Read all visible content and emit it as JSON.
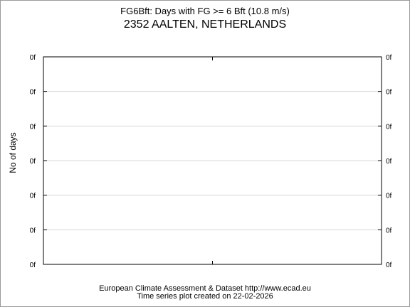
{
  "page": {
    "title": "FG6Bft: Days with FG >= 6 Bft (10.8 m/s)",
    "subtitle": "2352 AALTEN, NETHERLANDS",
    "footer_line1": "European Climate Assessment & Dataset  http://www.ecad.eu",
    "footer_line2": "Time series plot created on 22-02-2026"
  },
  "chart_data": {
    "type": "line",
    "title": "FG6Bft: Days with FG >= 6 Bft (10.8 m/s)",
    "subtitle": "2352 AALTEN, NETHERLANDS",
    "ylabel": "No of days",
    "xlabel": "",
    "y_tick_labels": [
      "0f",
      "0f",
      "0f",
      "0f",
      "0f",
      "0f",
      "0f"
    ],
    "series": [],
    "grid": true
  }
}
